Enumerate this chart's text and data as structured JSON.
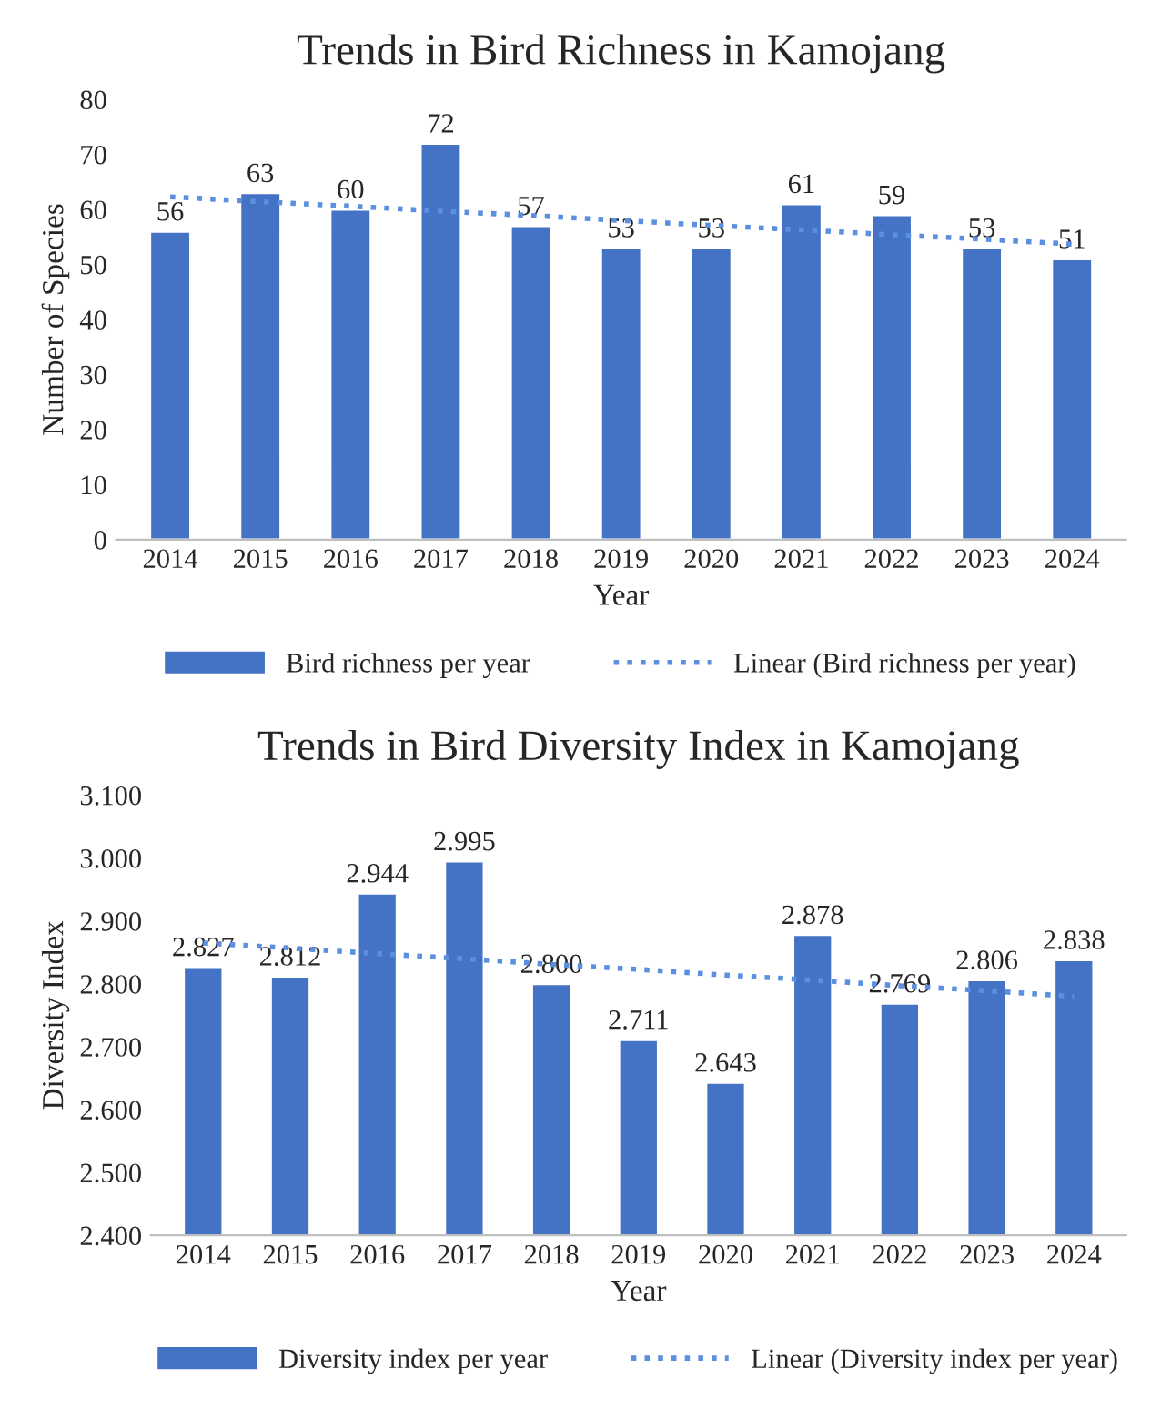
{
  "chart_data": [
    {
      "type": "bar",
      "title": "Trends in Bird Richness in Kamojang",
      "xlabel": "Year",
      "ylabel": "Number of Species",
      "categories": [
        "2014",
        "2015",
        "2016",
        "2017",
        "2018",
        "2019",
        "2020",
        "2021",
        "2022",
        "2023",
        "2024"
      ],
      "series": [
        {
          "name": "Bird richness per year",
          "color": "#4472c4",
          "values": [
            56,
            63,
            60,
            72,
            57,
            53,
            53,
            61,
            59,
            53,
            51
          ],
          "value_labels": [
            "56",
            "63",
            "60",
            "72",
            "57",
            "53",
            "53",
            "61",
            "59",
            "53",
            "51"
          ]
        },
        {
          "name": "Linear (Bird richness per year)",
          "type": "line",
          "color": "#5b8fe0",
          "line_style": "dotted",
          "values": [
            62.3,
            61.4,
            60.6,
            59.7,
            58.9,
            58.0,
            57.1,
            56.3,
            55.4,
            54.6,
            53.7
          ]
        }
      ],
      "ylim": [
        0,
        80
      ],
      "yticks": [
        0,
        10,
        20,
        30,
        40,
        50,
        60,
        70,
        80
      ],
      "grid": false,
      "legend": "bottom"
    },
    {
      "type": "bar",
      "title": "Trends in Bird Diversity Index in Kamojang",
      "xlabel": "Year",
      "ylabel": "Diversity Index",
      "categories": [
        "2014",
        "2015",
        "2016",
        "2017",
        "2018",
        "2019",
        "2020",
        "2021",
        "2022",
        "2023",
        "2024"
      ],
      "series": [
        {
          "name": "Diversity index per year",
          "color": "#4472c4",
          "values": [
            2.827,
            2.812,
            2.944,
            2.995,
            2.8,
            2.711,
            2.643,
            2.878,
            2.769,
            2.806,
            2.838
          ],
          "value_labels": [
            "2.827",
            "2.812",
            "2.944",
            "2.995",
            "2.800",
            "2.711",
            "2.643",
            "2.878",
            "2.769",
            "2.806",
            "2.838"
          ]
        },
        {
          "name": "Linear (Diversity index per year)",
          "type": "line",
          "color": "#5b8fe0",
          "line_style": "dotted",
          "values": [
            2.865,
            2.857,
            2.848,
            2.84,
            2.831,
            2.823,
            2.814,
            2.806,
            2.797,
            2.789,
            2.78
          ]
        }
      ],
      "ylim": [
        2.4,
        3.1
      ],
      "yticks": [
        {
          "value": 2.4,
          "label": "2.400"
        },
        {
          "value": 2.5,
          "label": "2.500"
        },
        {
          "value": 2.6,
          "label": "2.600"
        },
        {
          "value": 2.7,
          "label": "2.700"
        },
        {
          "value": 2.8,
          "label": "2.800"
        },
        {
          "value": 2.9,
          "label": "2.900"
        },
        {
          "value": 3.0,
          "label": "3.000"
        },
        {
          "value": 3.1,
          "label": "3.100"
        }
      ],
      "grid": false,
      "legend": "bottom"
    }
  ]
}
